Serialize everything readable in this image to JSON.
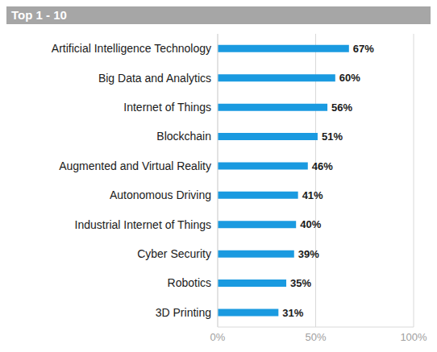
{
  "chart_data": {
    "type": "bar",
    "title": "Top 1 - 10",
    "orientation": "horizontal",
    "categories": [
      "Artificial Intelligence Technology",
      "Big Data and Analytics",
      "Internet of Things",
      "Blockchain",
      "Augmented and Virtual Reality",
      "Autonomous Driving",
      "Industrial Internet of Things",
      "Cyber Security",
      "Robotics",
      "3D Printing"
    ],
    "values": [
      67,
      60,
      56,
      51,
      46,
      41,
      40,
      39,
      35,
      31
    ],
    "value_labels": [
      "67%",
      "60%",
      "56%",
      "51%",
      "46%",
      "41%",
      "40%",
      "39%",
      "35%",
      "31%"
    ],
    "color": "#1a9ae0",
    "xlim": [
      0,
      100
    ],
    "xticks": [
      {
        "value": 0,
        "label": "0%"
      },
      {
        "value": 50,
        "label": "50%"
      },
      {
        "value": 100,
        "label": "100%"
      }
    ],
    "grid": true,
    "data_labels": true
  }
}
